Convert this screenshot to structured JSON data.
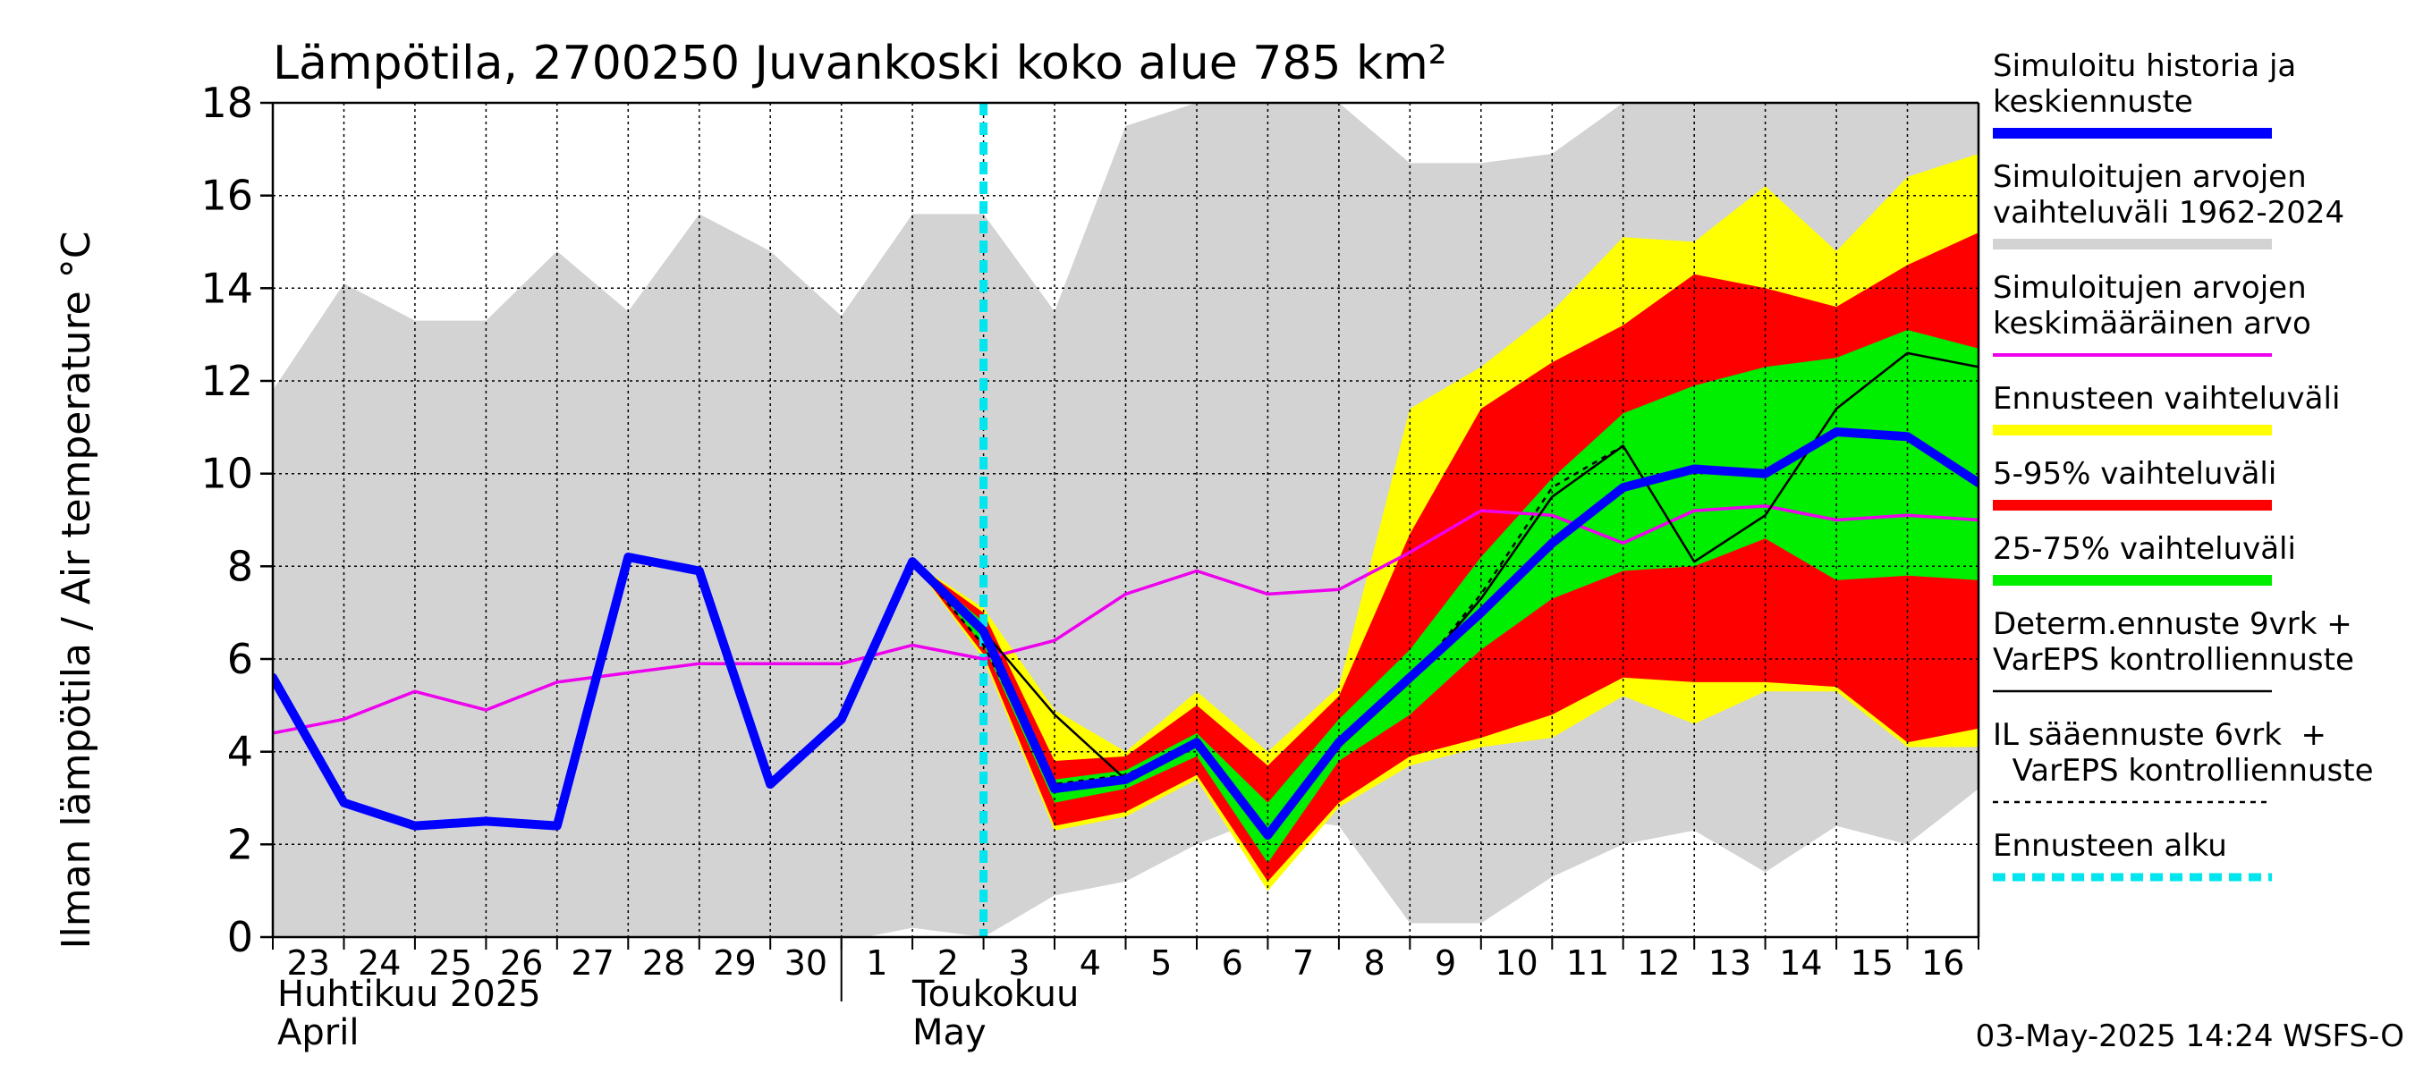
{
  "chart_data": {
    "type": "area",
    "title": "Lämpötila, 2700250 Juvankoski koko alue 785 km²",
    "ylabel": "Ilman lämpötila / Air temperature    °C",
    "ylim": [
      0,
      18
    ],
    "yticks": [
      0,
      2,
      4,
      6,
      8,
      10,
      12,
      14,
      16,
      18
    ],
    "grid": true,
    "legend_position": "right",
    "x_tick_labels": [
      "23",
      "24",
      "25",
      "26",
      "27",
      "28",
      "29",
      "30",
      "1",
      "2",
      "3",
      "4",
      "5",
      "6",
      "7",
      "8",
      "9",
      "10",
      "11",
      "12",
      "13",
      "14",
      "15",
      "16"
    ],
    "month_labels": {
      "april_fi": "Huhtikuu  2025",
      "april_en": "April",
      "may_fi": "Toukokuu",
      "may_en": "May"
    },
    "x": [
      "2025-04-23",
      "2025-04-24",
      "2025-04-25",
      "2025-04-26",
      "2025-04-27",
      "2025-04-28",
      "2025-04-29",
      "2025-04-30",
      "2025-05-01",
      "2025-05-02",
      "2025-05-03",
      "2025-05-04",
      "2025-05-05",
      "2025-05-06",
      "2025-05-07",
      "2025-05-08",
      "2025-05-09",
      "2025-05-10",
      "2025-05-11",
      "2025-05-12",
      "2025-05-13",
      "2025-05-14",
      "2025-05-15",
      "2025-05-16",
      "2025-05-17"
    ],
    "forecast_start": "2025-05-03",
    "series": [
      {
        "name": "Simuloitujen arvojen vaihteluväli 1962-2024",
        "kind": "band",
        "x": [
          "2025-04-23",
          "2025-04-24",
          "2025-04-25",
          "2025-04-26",
          "2025-04-27",
          "2025-04-28",
          "2025-04-29",
          "2025-04-30",
          "2025-05-01",
          "2025-05-02",
          "2025-05-03",
          "2025-05-04",
          "2025-05-05",
          "2025-05-06",
          "2025-05-07",
          "2025-05-08",
          "2025-05-09",
          "2025-05-10",
          "2025-05-11",
          "2025-05-12",
          "2025-05-13",
          "2025-05-14",
          "2025-05-15",
          "2025-05-16",
          "2025-05-17"
        ],
        "low": [
          0.0,
          -0.1,
          -0.1,
          0.0,
          0.0,
          0.0,
          -0.1,
          -0.1,
          -0.1,
          0.2,
          0.0,
          0.9,
          1.2,
          2.0,
          2.6,
          2.4,
          0.3,
          0.3,
          1.3,
          2.0,
          2.3,
          1.4,
          2.4,
          2.0,
          3.2
        ],
        "high": [
          11.8,
          14.1,
          13.3,
          13.3,
          14.8,
          13.5,
          15.6,
          14.8,
          13.4,
          15.6,
          15.6,
          13.5,
          17.5,
          18.0,
          18.0,
          18.0,
          16.7,
          16.7,
          16.9,
          18.0,
          18.0,
          18.0,
          18.0,
          18.0,
          18.0
        ],
        "color": "#d3d3d3"
      },
      {
        "name": "Ennusteen vaihteluväli",
        "kind": "band",
        "x": [
          "2025-05-02",
          "2025-05-03",
          "2025-05-04",
          "2025-05-05",
          "2025-05-06",
          "2025-05-07",
          "2025-05-08",
          "2025-05-09",
          "2025-05-10",
          "2025-05-11",
          "2025-05-12",
          "2025-05-13",
          "2025-05-14",
          "2025-05-15",
          "2025-05-16",
          "2025-05-17"
        ],
        "low": [
          8.1,
          6.0,
          2.3,
          2.6,
          3.4,
          1.0,
          2.8,
          3.7,
          4.1,
          4.3,
          5.2,
          4.6,
          5.3,
          5.3,
          4.1,
          4.1
        ],
        "high": [
          8.1,
          7.1,
          4.9,
          4.0,
          5.3,
          4.0,
          5.4,
          11.4,
          12.3,
          13.5,
          15.1,
          15.0,
          16.2,
          14.8,
          16.4,
          16.9
        ],
        "color": "#ffff00"
      },
      {
        "name": "5-95% vaihteluväli",
        "kind": "band",
        "x": [
          "2025-05-02",
          "2025-05-03",
          "2025-05-04",
          "2025-05-05",
          "2025-05-06",
          "2025-05-07",
          "2025-05-08",
          "2025-05-09",
          "2025-05-10",
          "2025-05-11",
          "2025-05-12",
          "2025-05-13",
          "2025-05-14",
          "2025-05-15",
          "2025-05-16",
          "2025-05-17"
        ],
        "low": [
          8.1,
          6.1,
          2.4,
          2.7,
          3.5,
          1.2,
          2.9,
          3.9,
          4.3,
          4.8,
          5.6,
          5.5,
          5.5,
          5.4,
          4.2,
          4.5
        ],
        "high": [
          8.1,
          7.0,
          3.8,
          3.9,
          5.0,
          3.7,
          5.2,
          8.7,
          11.4,
          12.4,
          13.2,
          14.3,
          14.0,
          13.6,
          14.5,
          15.2
        ],
        "color": "#ff0000"
      },
      {
        "name": "25-75% vaihteluväli",
        "kind": "band",
        "x": [
          "2025-05-02",
          "2025-05-03",
          "2025-05-04",
          "2025-05-05",
          "2025-05-06",
          "2025-05-07",
          "2025-05-08",
          "2025-05-09",
          "2025-05-10",
          "2025-05-11",
          "2025-05-12",
          "2025-05-13",
          "2025-05-14",
          "2025-05-15",
          "2025-05-16",
          "2025-05-17"
        ],
        "low": [
          8.1,
          6.3,
          2.9,
          3.2,
          3.9,
          1.6,
          3.8,
          4.8,
          6.2,
          7.3,
          7.9,
          8.0,
          8.6,
          7.7,
          7.8,
          7.7
        ],
        "high": [
          8.1,
          6.8,
          3.4,
          3.6,
          4.4,
          2.9,
          4.7,
          6.2,
          8.2,
          9.9,
          11.3,
          11.9,
          12.3,
          12.5,
          13.1,
          12.7
        ],
        "color": "#00ee00"
      },
      {
        "name": "Simuloitujen arvojen keskimääräinen arvo",
        "kind": "line",
        "x": [
          "2025-04-23",
          "2025-04-24",
          "2025-04-25",
          "2025-04-26",
          "2025-04-27",
          "2025-04-28",
          "2025-04-29",
          "2025-04-30",
          "2025-05-01",
          "2025-05-02",
          "2025-05-03",
          "2025-05-04",
          "2025-05-05",
          "2025-05-06",
          "2025-05-07",
          "2025-05-08",
          "2025-05-09",
          "2025-05-10",
          "2025-05-11",
          "2025-05-12",
          "2025-05-13",
          "2025-05-14",
          "2025-05-15",
          "2025-05-16",
          "2025-05-17"
        ],
        "values": [
          4.4,
          4.7,
          5.3,
          4.9,
          5.5,
          5.7,
          5.9,
          5.9,
          5.9,
          6.3,
          6.0,
          6.4,
          7.4,
          7.9,
          7.4,
          7.5,
          8.3,
          9.2,
          9.1,
          8.5,
          9.2,
          9.3,
          9.0,
          9.1,
          9.0
        ],
        "color": "#ee00ee",
        "width": 3.5
      },
      {
        "name": "Determ.ennuste 9vrk + VarEPS kontrolliennuste",
        "kind": "line",
        "x": [
          "2025-05-02",
          "2025-05-03",
          "2025-05-04",
          "2025-05-05",
          "2025-05-06",
          "2025-05-07",
          "2025-05-08",
          "2025-05-09",
          "2025-05-10",
          "2025-05-11",
          "2025-05-12",
          "2025-05-13",
          "2025-05-14",
          "2025-05-15",
          "2025-05-16",
          "2025-05-17"
        ],
        "values": [
          8.1,
          6.6,
          4.8,
          3.4,
          4.2,
          2.2,
          4.1,
          5.5,
          7.3,
          9.5,
          10.6,
          8.1,
          9.1,
          11.4,
          12.6,
          12.3
        ],
        "color": "#000000",
        "width": 2.5
      },
      {
        "name": "IL sääennuste 6vrk  +  VarEPS kontrolliennuste",
        "kind": "dashed",
        "x": [
          "2025-05-02",
          "2025-05-03",
          "2025-05-04",
          "2025-05-05",
          "2025-05-06",
          "2025-05-07",
          "2025-05-08",
          "2025-05-09",
          "2025-05-10",
          "2025-05-11",
          "2025-05-12"
        ],
        "values": [
          8.1,
          6.3,
          3.3,
          3.5,
          4.2,
          2.2,
          4.2,
          5.5,
          7.4,
          9.7,
          10.6
        ],
        "color": "#000000",
        "width": 2.5
      },
      {
        "name": "Simuloitu historia ja keskiennuste",
        "kind": "line",
        "x": [
          "2025-04-23",
          "2025-04-24",
          "2025-04-25",
          "2025-04-26",
          "2025-04-27",
          "2025-04-28",
          "2025-04-29",
          "2025-04-30",
          "2025-05-01",
          "2025-05-02",
          "2025-05-03",
          "2025-05-04",
          "2025-05-05",
          "2025-05-06",
          "2025-05-07",
          "2025-05-08",
          "2025-05-09",
          "2025-05-10",
          "2025-05-11",
          "2025-05-12",
          "2025-05-13",
          "2025-05-14",
          "2025-05-15",
          "2025-05-16",
          "2025-05-17"
        ],
        "values": [
          5.6,
          2.9,
          2.4,
          2.5,
          2.4,
          8.2,
          7.9,
          3.3,
          4.7,
          8.1,
          6.6,
          3.2,
          3.4,
          4.2,
          2.2,
          4.2,
          5.6,
          7.0,
          8.5,
          9.7,
          10.1,
          10.0,
          10.9,
          10.8,
          9.8
        ],
        "color": "#0000ff",
        "width": 10
      }
    ],
    "legend": [
      {
        "label": "Simuloitu historia ja\nkeskiennuste",
        "color": "#0000ff",
        "style": "thick"
      },
      {
        "label": "Simuloitujen arvojen\nvaihteluväli 1962-2024",
        "color": "#d3d3d3",
        "style": "thick"
      },
      {
        "label": "Simuloitujen arvojen\nkeskimääräinen arvo",
        "color": "#ee00ee",
        "style": "medium"
      },
      {
        "label": "Ennusteen vaihteluväli",
        "color": "#ffff00",
        "style": "thick"
      },
      {
        "label": "5-95% vaihteluväli",
        "color": "#ff0000",
        "style": "thick"
      },
      {
        "label": "25-75% vaihteluväli",
        "color": "#00ee00",
        "style": "thick"
      },
      {
        "label": "Determ.ennuste 9vrk +\nVarEPS kontrolliennuste",
        "color": "#000000",
        "style": "thin"
      },
      {
        "label": "IL sääennuste 6vrk  +\n  VarEPS kontrolliennuste",
        "color": "#000000",
        "style": "dashed"
      },
      {
        "label": "Ennusteen alku",
        "color": "#00e5ee",
        "style": "cyan-dashed"
      }
    ],
    "timestamp": "03-May-2025 14:24 WSFS-O"
  }
}
